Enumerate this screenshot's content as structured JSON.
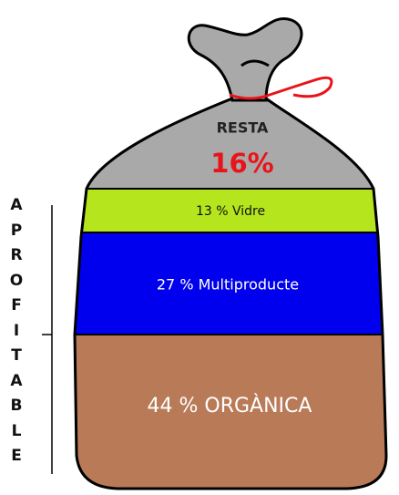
{
  "top_label": "RESTA",
  "top_value": "16%",
  "segments": [
    {
      "label": "13 % Vidre"
    },
    {
      "label": "27 % Multiproducte"
    },
    {
      "label": "44 % ORGÀNICA"
    }
  ],
  "side_label": "APROFITABLE"
}
